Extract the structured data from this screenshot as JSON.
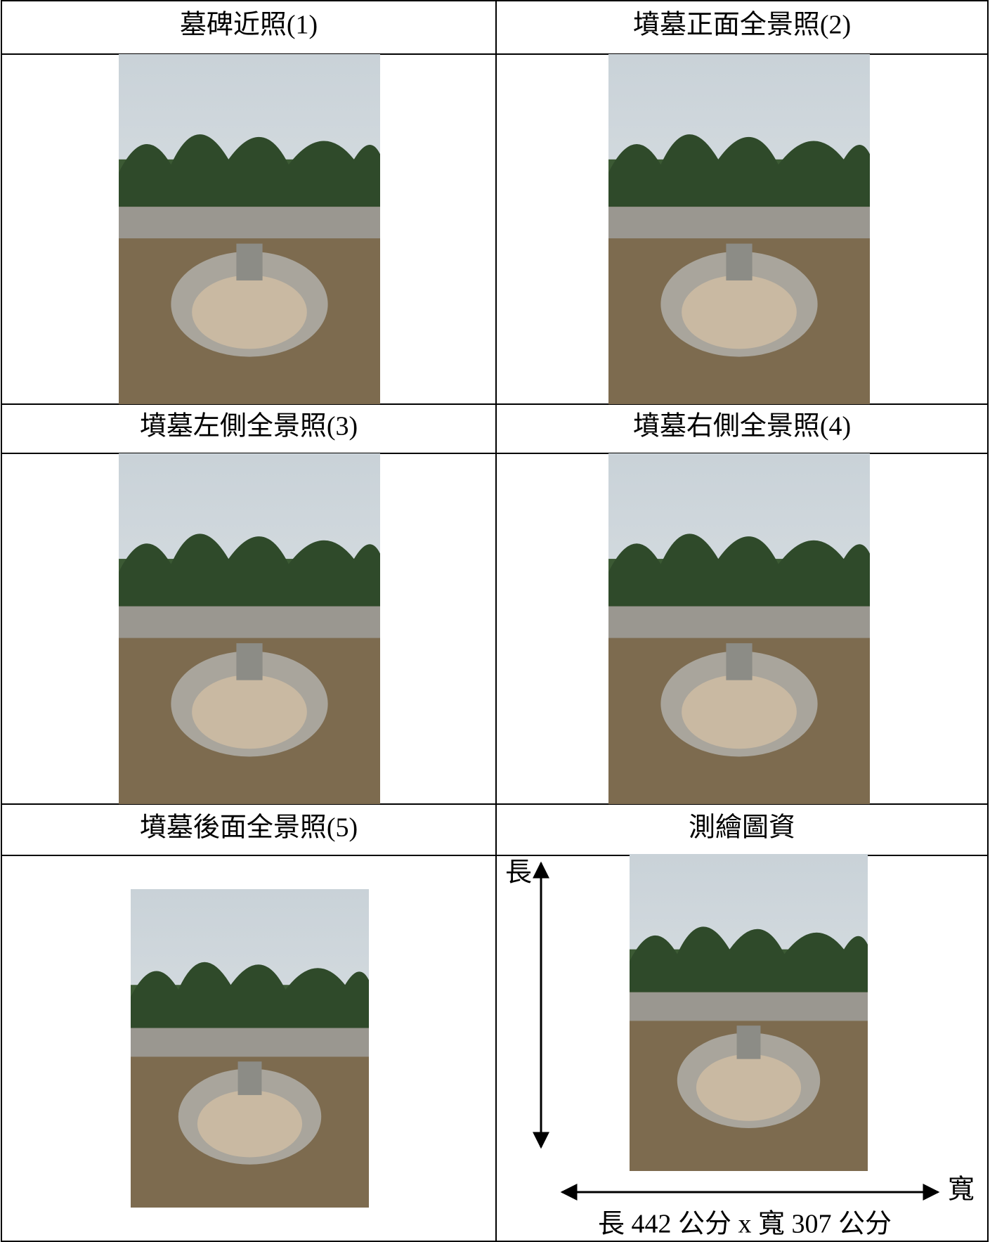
{
  "table": {
    "rows": [
      [
        "墓碑近照(1)",
        "墳墓正面全景照(2)"
      ],
      [
        "墳墓左側全景照(3)",
        "墳墓右側全景照(4)"
      ],
      [
        "墳墓後面全景照(5)",
        "測繪圖資"
      ]
    ]
  },
  "diagram": {
    "length_label": "長",
    "width_label": "寬",
    "caption": "長 442 公分 x 寬 307 公分"
  }
}
